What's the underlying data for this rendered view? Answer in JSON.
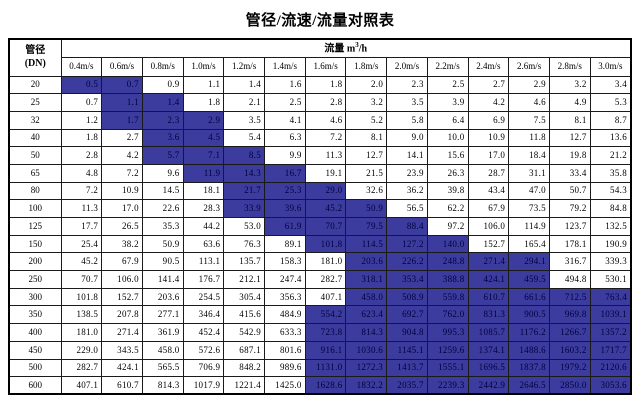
{
  "title": "管径/流速/流量对照表",
  "colors": {
    "highlight_bg": "#3C3C9E",
    "highlight_text": "#000040",
    "grid_border": "#000000",
    "page_bg": "#FFFFFF"
  },
  "table": {
    "corner_header_line1": "管径",
    "corner_header_line2": "(DN)",
    "flow_header_prefix": "流量 m",
    "flow_header_sup": "3",
    "flow_header_suffix": "/h",
    "velocity_headers": [
      "0.4m/s",
      "0.6m/s",
      "0.8m/s",
      "1.0m/s",
      "1.2m/s",
      "1.4m/s",
      "1.6m/s",
      "1.8m/s",
      "2.0m/s",
      "2.2m/s",
      "2.4m/s",
      "2.6m/s",
      "2.8m/s",
      "3.0m/s"
    ],
    "rows": [
      {
        "dn": "20",
        "values": [
          "0.5",
          "0.7",
          "0.9",
          "1.1",
          "1.4",
          "1.6",
          "1.8",
          "2.0",
          "2.3",
          "2.5",
          "2.7",
          "2.9",
          "3.2",
          "3.4"
        ],
        "highlight": [
          0,
          1
        ]
      },
      {
        "dn": "25",
        "values": [
          "0.7",
          "1.1",
          "1.4",
          "1.8",
          "2.1",
          "2.5",
          "2.8",
          "3.2",
          "3.5",
          "3.9",
          "4.2",
          "4.6",
          "4.9",
          "5.3"
        ],
        "highlight": [
          1,
          2
        ]
      },
      {
        "dn": "32",
        "values": [
          "1.2",
          "1.7",
          "2.3",
          "2.9",
          "3.5",
          "4.1",
          "4.6",
          "5.2",
          "5.8",
          "6.4",
          "6.9",
          "7.5",
          "8.1",
          "8.7"
        ],
        "highlight": [
          1,
          2,
          3
        ]
      },
      {
        "dn": "40",
        "values": [
          "1.8",
          "2.7",
          "3.6",
          "4.5",
          "5.4",
          "6.3",
          "7.2",
          "8.1",
          "9.0",
          "10.0",
          "10.9",
          "11.8",
          "12.7",
          "13.6"
        ],
        "highlight": [
          2,
          3
        ]
      },
      {
        "dn": "50",
        "values": [
          "2.8",
          "4.2",
          "5.7",
          "7.1",
          "8.5",
          "9.9",
          "11.3",
          "12.7",
          "14.1",
          "15.6",
          "17.0",
          "18.4",
          "19.8",
          "21.2"
        ],
        "highlight": [
          2,
          3,
          4
        ]
      },
      {
        "dn": "65",
        "values": [
          "4.8",
          "7.2",
          "9.6",
          "11.9",
          "14.3",
          "16.7",
          "19.1",
          "21.5",
          "23.9",
          "26.3",
          "28.7",
          "31.1",
          "33.4",
          "35.8"
        ],
        "highlight": [
          3,
          4,
          5
        ]
      },
      {
        "dn": "80",
        "values": [
          "7.2",
          "10.9",
          "14.5",
          "18.1",
          "21.7",
          "25.3",
          "29.0",
          "32.6",
          "36.2",
          "39.8",
          "43.4",
          "47.0",
          "50.7",
          "54.3"
        ],
        "highlight": [
          4,
          5,
          6
        ]
      },
      {
        "dn": "100",
        "values": [
          "11.3",
          "17.0",
          "22.6",
          "28.3",
          "33.9",
          "39.6",
          "45.2",
          "50.9",
          "56.5",
          "62.2",
          "67.9",
          "73.5",
          "79.2",
          "84.8"
        ],
        "highlight": [
          4,
          5,
          6,
          7
        ]
      },
      {
        "dn": "125",
        "values": [
          "17.7",
          "26.5",
          "35.3",
          "44.2",
          "53.0",
          "61.9",
          "70.7",
          "79.5",
          "88.4",
          "97.2",
          "106.0",
          "114.9",
          "123.7",
          "132.5"
        ],
        "highlight": [
          5,
          6,
          7,
          8
        ]
      },
      {
        "dn": "150",
        "values": [
          "25.4",
          "38.2",
          "50.9",
          "63.6",
          "76.3",
          "89.1",
          "101.8",
          "114.5",
          "127.2",
          "140.0",
          "152.7",
          "165.4",
          "178.1",
          "190.9"
        ],
        "highlight": [
          6,
          7,
          8,
          9
        ]
      },
      {
        "dn": "200",
        "values": [
          "45.2",
          "67.9",
          "90.5",
          "113.1",
          "135.7",
          "158.3",
          "181.0",
          "203.6",
          "226.2",
          "248.8",
          "271.4",
          "294.1",
          "316.7",
          "339.3"
        ],
        "highlight": [
          7,
          8,
          9,
          10,
          11
        ]
      },
      {
        "dn": "250",
        "values": [
          "70.7",
          "106.0",
          "141.4",
          "176.7",
          "212.1",
          "247.4",
          "282.7",
          "318.1",
          "353.4",
          "388.8",
          "424.1",
          "459.5",
          "494.8",
          "530.1"
        ],
        "highlight": [
          7,
          8,
          9,
          10,
          11
        ]
      },
      {
        "dn": "300",
        "values": [
          "101.8",
          "152.7",
          "203.6",
          "254.5",
          "305.4",
          "356.3",
          "407.1",
          "458.0",
          "508.9",
          "559.8",
          "610.7",
          "661.6",
          "712.5",
          "763.4"
        ],
        "highlight": [
          7,
          8,
          9,
          10,
          11,
          12,
          13
        ]
      },
      {
        "dn": "350",
        "values": [
          "138.5",
          "207.8",
          "277.1",
          "346.4",
          "415.6",
          "484.9",
          "554.2",
          "623.4",
          "692.7",
          "762.0",
          "831.3",
          "900.5",
          "969.8",
          "1039.1"
        ],
        "highlight": [
          6,
          7,
          8,
          9,
          10,
          11,
          12,
          13
        ]
      },
      {
        "dn": "400",
        "values": [
          "181.0",
          "271.4",
          "361.9",
          "452.4",
          "542.9",
          "633.3",
          "723.8",
          "814.3",
          "904.8",
          "995.3",
          "1085.7",
          "1176.2",
          "1266.7",
          "1357.2"
        ],
        "highlight": [
          6,
          7,
          8,
          9,
          10,
          11,
          12,
          13
        ]
      },
      {
        "dn": "450",
        "values": [
          "229.0",
          "343.5",
          "458.0",
          "572.6",
          "687.1",
          "801.6",
          "916.1",
          "1030.6",
          "1145.1",
          "1259.6",
          "1374.1",
          "1488.6",
          "1603.2",
          "1717.7"
        ],
        "highlight": [
          6,
          7,
          8,
          9,
          10,
          11,
          12,
          13
        ]
      },
      {
        "dn": "500",
        "values": [
          "282.7",
          "424.1",
          "565.5",
          "706.9",
          "848.2",
          "989.6",
          "1131.0",
          "1272.3",
          "1413.7",
          "1555.1",
          "1696.5",
          "1837.8",
          "1979.2",
          "2120.6"
        ],
        "highlight": [
          6,
          7,
          8,
          9,
          10,
          11,
          12,
          13
        ]
      },
      {
        "dn": "600",
        "values": [
          "407.1",
          "610.7",
          "814.3",
          "1017.9",
          "1221.4",
          "1425.0",
          "1628.6",
          "1832.2",
          "2035.7",
          "2239.3",
          "2442.9",
          "2646.5",
          "2850.0",
          "3053.6"
        ],
        "highlight": [
          6,
          7,
          8,
          9,
          10,
          11,
          12,
          13
        ]
      }
    ]
  }
}
